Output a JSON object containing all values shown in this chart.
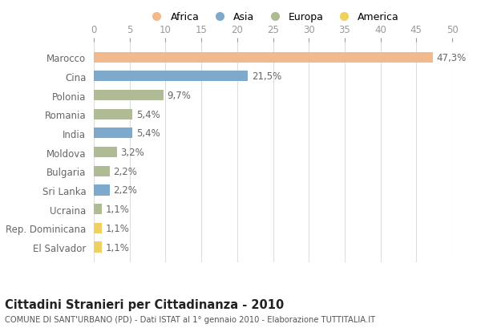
{
  "categories": [
    "Marocco",
    "Cina",
    "Polonia",
    "Romania",
    "India",
    "Moldova",
    "Bulgaria",
    "Sri Lanka",
    "Ucraina",
    "Rep. Dominicana",
    "El Salvador"
  ],
  "values": [
    47.3,
    21.5,
    9.7,
    5.4,
    5.4,
    3.2,
    2.2,
    2.2,
    1.1,
    1.1,
    1.1
  ],
  "labels": [
    "47,3%",
    "21,5%",
    "9,7%",
    "5,4%",
    "5,4%",
    "3,2%",
    "2,2%",
    "2,2%",
    "1,1%",
    "1,1%",
    "1,1%"
  ],
  "colors": [
    "#F2BA8C",
    "#7CA9CC",
    "#AEBB94",
    "#AEBB94",
    "#7CA9CC",
    "#AEBB94",
    "#AEBB94",
    "#7CA9CC",
    "#AEBB94",
    "#F0D060",
    "#F0D060"
  ],
  "legend_labels": [
    "Africa",
    "Asia",
    "Europa",
    "America"
  ],
  "legend_colors": [
    "#F2BA8C",
    "#7CA9CC",
    "#AEBB94",
    "#F0D060"
  ],
  "xlim": [
    0,
    50
  ],
  "xticks": [
    0,
    5,
    10,
    15,
    20,
    25,
    30,
    35,
    40,
    45,
    50
  ],
  "title": "Cittadini Stranieri per Cittadinanza - 2010",
  "subtitle": "COMUNE DI SANT'URBANO (PD) - Dati ISTAT al 1° gennaio 2010 - Elaborazione TUTTITALIA.IT",
  "bg_color": "#FFFFFF",
  "bar_height": 0.55,
  "label_fontsize": 8.5,
  "tick_fontsize": 8.5,
  "ytick_fontsize": 8.5
}
